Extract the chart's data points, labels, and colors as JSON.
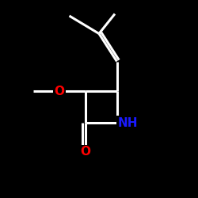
{
  "background_color": "#000000",
  "bond_color": "#ffffff",
  "bond_width": 2.2,
  "atom_colors": {
    "O": "#ff0000",
    "N": "#1a1aff",
    "C": "#ffffff"
  },
  "font_size_NH": 11,
  "font_size_O": 11,
  "xlim": [
    0,
    10
  ],
  "ylim": [
    0,
    10
  ]
}
